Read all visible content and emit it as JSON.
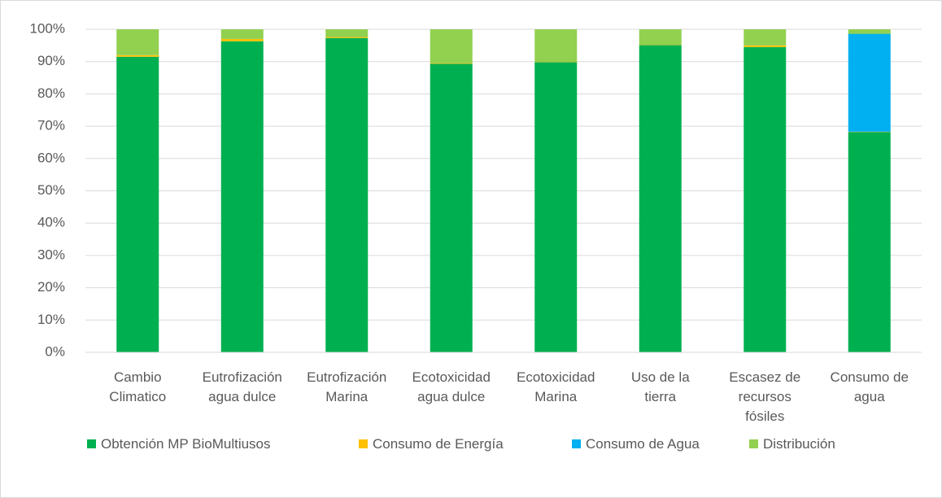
{
  "chart_data": {
    "type": "stacked_bar",
    "categories": [
      "Cambio Climatico",
      "Eutrofización agua dulce",
      "Eutrofización Marina",
      "Ecotoxicidad agua dulce",
      "Ecotoxicidad Marina",
      "Uso de la tierra",
      "Escasez de recursos fósiles",
      "Consumo de agua"
    ],
    "series": [
      {
        "name": "Obtención MP BioMultiusos",
        "color": "#00b050",
        "values": [
          91.5,
          96.3,
          97.3,
          89.3,
          89.8,
          95.1,
          94.5,
          68.2
        ]
      },
      {
        "name": "Consumo de Energía",
        "color": "#ffc000",
        "values": [
          0.5,
          0.7,
          0.3,
          0.2,
          0.1,
          0.1,
          0.5,
          0.1
        ]
      },
      {
        "name": "Consumo de Agua",
        "color": "#00b0f0",
        "values": [
          0,
          0,
          0,
          0,
          0,
          0,
          0,
          30.3
        ]
      },
      {
        "name": "Distribución",
        "color": "#92d050",
        "values": [
          8.0,
          3.0,
          2.4,
          10.5,
          10.1,
          4.8,
          5.0,
          1.4
        ]
      }
    ],
    "ylim": [
      0,
      100
    ],
    "yticks": [
      {
        "value": 0,
        "label": "0%"
      },
      {
        "value": 10,
        "label": "10%"
      },
      {
        "value": 20,
        "label": "20%"
      },
      {
        "value": 30,
        "label": "30%"
      },
      {
        "value": 40,
        "label": "40%"
      },
      {
        "value": 50,
        "label": "50%"
      },
      {
        "value": 60,
        "label": "60%"
      },
      {
        "value": 70,
        "label": "70%"
      },
      {
        "value": 80,
        "label": "80%"
      },
      {
        "value": 90,
        "label": "90%"
      },
      {
        "value": 100,
        "label": "100%"
      }
    ],
    "grid": true,
    "legend": "bottom"
  }
}
